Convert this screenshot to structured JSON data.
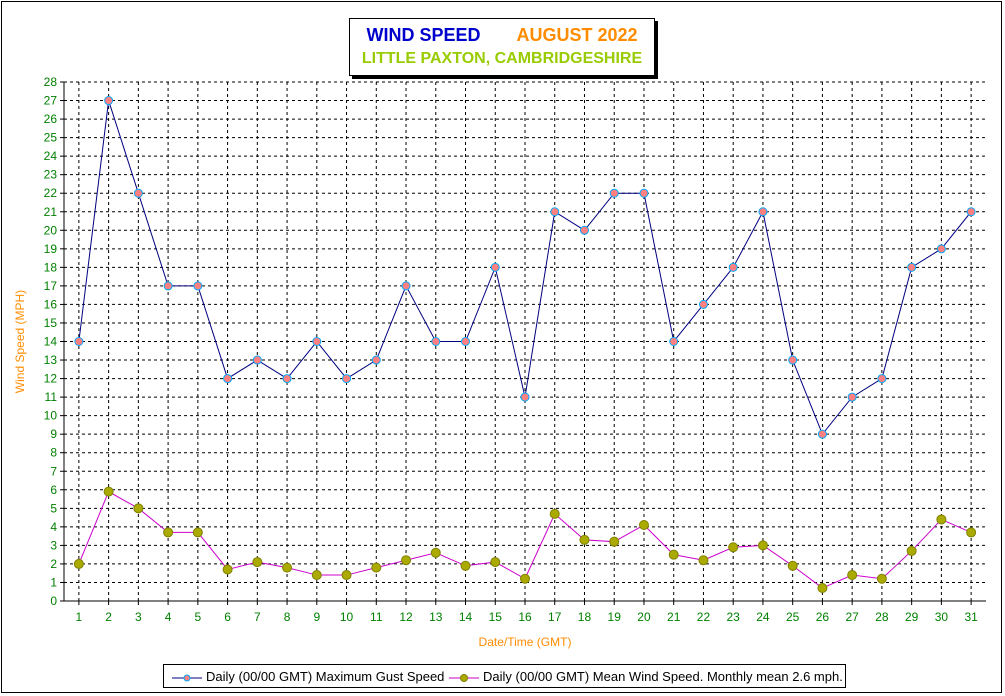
{
  "title": "WIND SPEED",
  "month": "AUGUST 2022",
  "subtitle": "LITTLE PAXTON, CAMBRIDGESHIRE",
  "colors": {
    "gust_line": "#000080",
    "gust_marker": "#ff8080",
    "gust_marker_stroke": "#00aaff",
    "mean_line": "#cc00cc",
    "mean_marker": "#aaaa00",
    "grid": "#000000",
    "tick_text": "#008000",
    "axis_title": "#ff8c00"
  },
  "chart_data": {
    "type": "line",
    "xlabel": "Date/Time (GMT)",
    "ylabel": "Wind Speed (MPH)",
    "ylim": [
      0,
      28
    ],
    "y_ticks": [
      0,
      1,
      2,
      3,
      4,
      5,
      6,
      7,
      8,
      9,
      10,
      11,
      12,
      13,
      14,
      15,
      16,
      17,
      18,
      19,
      20,
      21,
      22,
      23,
      24,
      25,
      26,
      27,
      28
    ],
    "categories": [
      "1",
      "2",
      "3",
      "4",
      "5",
      "6",
      "7",
      "8",
      "9",
      "10",
      "11",
      "12",
      "13",
      "14",
      "15",
      "16",
      "17",
      "18",
      "19",
      "20",
      "21",
      "22",
      "23",
      "24",
      "25",
      "26",
      "27",
      "28",
      "29",
      "30",
      "31"
    ],
    "grid": true,
    "legend_position": "bottom",
    "series": [
      {
        "name": "Daily (00/00 GMT) Maximum Gust Speed",
        "values": [
          14,
          27,
          22,
          17,
          17,
          12,
          13,
          12,
          14,
          12,
          13,
          17,
          14,
          14,
          18,
          11,
          21,
          20,
          22,
          22,
          14,
          16,
          18,
          21,
          13,
          9,
          11,
          12,
          18,
          19,
          21
        ]
      },
      {
        "name": "Daily (00/00 GMT) Mean Wind Speed. Monthly mean 2.6 mph.",
        "values": [
          2.0,
          5.9,
          5.0,
          3.7,
          3.7,
          1.7,
          2.1,
          1.8,
          1.4,
          1.4,
          1.8,
          2.2,
          2.6,
          1.9,
          2.1,
          1.2,
          4.7,
          3.3,
          3.2,
          4.1,
          2.5,
          2.2,
          2.9,
          3.0,
          1.9,
          0.7,
          1.4,
          1.2,
          2.7,
          4.4,
          3.7
        ]
      }
    ]
  }
}
